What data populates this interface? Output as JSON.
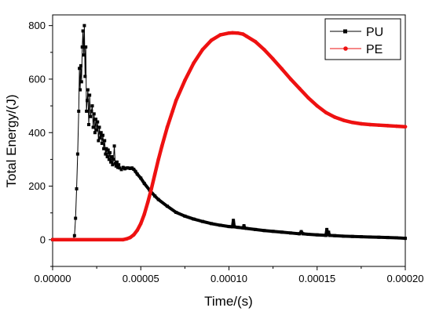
{
  "chart_data": {
    "type": "line",
    "xlabel": "Time/(s)",
    "ylabel": "Total Energy/(J)",
    "xlim": [
      0,
      0.0002
    ],
    "ylim": [
      -100,
      840
    ],
    "x_ticks": [
      "0.00000",
      "0.00005",
      "0.00010",
      "0.00015",
      "0.00020"
    ],
    "x_tick_values": [
      0,
      5e-05,
      0.0001,
      0.00015,
      0.0002
    ],
    "y_ticks": [
      "0",
      "200",
      "400",
      "600",
      "800"
    ],
    "y_tick_values": [
      0,
      200,
      400,
      600,
      800
    ],
    "legend_position": "top-right",
    "series": [
      {
        "name": "PU",
        "color": "#000000",
        "marker": "square",
        "x": [
          0,
          1.18e-05,
          1.24e-05,
          1.3e-05,
          1.36e-05,
          1.42e-05,
          1.48e-05,
          1.52e-05,
          1.56e-05,
          1.6e-05,
          1.64e-05,
          1.68e-05,
          1.72e-05,
          1.76e-05,
          1.8e-05,
          1.84e-05,
          1.88e-05,
          1.92e-05,
          1.96e-05,
          2e-05,
          2.05e-05,
          2.1e-05,
          2.15e-05,
          2.2e-05,
          2.25e-05,
          2.3e-05,
          2.35e-05,
          2.4e-05,
          2.45e-05,
          2.5e-05,
          2.55e-05,
          2.6e-05,
          2.65e-05,
          2.7e-05,
          2.75e-05,
          2.8e-05,
          2.85e-05,
          2.9e-05,
          2.95e-05,
          3e-05,
          3.05e-05,
          3.1e-05,
          3.15e-05,
          3.2e-05,
          3.25e-05,
          3.3e-05,
          3.35e-05,
          3.4e-05,
          3.45e-05,
          3.5e-05,
          3.55e-05,
          3.6e-05,
          3.65e-05,
          3.7e-05,
          3.75e-05,
          3.8e-05,
          3.9e-05,
          4e-05,
          4.1e-05,
          4.2e-05,
          4.3e-05,
          4.4e-05,
          4.5e-05,
          4.6e-05,
          4.7e-05,
          4.8e-05,
          5e-05,
          5.2e-05,
          5.5e-05,
          5.8e-05,
          6e-05,
          6.5e-05,
          7e-05,
          7.5e-05,
          8e-05,
          8.5e-05,
          9e-05,
          9.5e-05,
          0.0001,
          0.000102,
          0.0001025,
          0.000103,
          0.000105,
          0.000108,
          0.0001085,
          0.000109,
          0.00011,
          0.000115,
          0.00012,
          0.000125,
          0.00013,
          0.000135,
          0.00014,
          0.000141,
          0.000142,
          0.000145,
          0.00015,
          0.000155,
          0.0001555,
          0.000156,
          0.0001565,
          0.000157,
          0.00016,
          0.000165,
          0.00017,
          0.000175,
          0.00018,
          0.000185,
          0.00019,
          0.000195,
          0.0002
        ],
        "y": [
          0,
          0,
          15,
          80,
          190,
          320,
          480,
          640,
          560,
          650,
          590,
          720,
          780,
          690,
          800,
          610,
          720,
          480,
          520,
          560,
          430,
          540,
          460,
          480,
          500,
          420,
          470,
          400,
          450,
          410,
          440,
          370,
          420,
          380,
          400,
          360,
          390,
          340,
          370,
          320,
          340,
          310,
          335,
          300,
          325,
          290,
          310,
          280,
          300,
          350,
          285,
          275,
          290,
          270,
          280,
          268,
          262,
          270,
          265,
          268,
          268,
          266,
          268,
          263,
          255,
          245,
          230,
          210,
          185,
          163,
          150,
          125,
          102,
          88,
          77,
          68,
          60,
          54,
          49,
          48,
          72,
          48,
          46,
          44,
          52,
          43,
          42,
          38,
          34,
          31,
          28,
          25,
          22,
          30,
          22,
          20,
          18,
          16,
          38,
          20,
          28,
          16,
          15,
          13,
          12,
          11,
          10,
          9,
          8,
          7,
          5
        ]
      },
      {
        "name": "PE",
        "color": "#ee1111",
        "marker": "circle",
        "x": [
          0,
          4e-05,
          4.2e-05,
          4.4e-05,
          4.6e-05,
          4.8e-05,
          5e-05,
          5.2e-05,
          5.4e-05,
          5.6e-05,
          5.8e-05,
          6e-05,
          6.2e-05,
          6.5e-05,
          6.8e-05,
          7e-05,
          7.5e-05,
          8e-05,
          8.5e-05,
          9e-05,
          9.5e-05,
          0.0001,
          0.000102,
          0.000105,
          0.000108,
          0.00011,
          0.000115,
          0.00012,
          0.000125,
          0.00013,
          0.000135,
          0.00014,
          0.000145,
          0.00015,
          0.000155,
          0.00016,
          0.000165,
          0.00017,
          0.000175,
          0.00018,
          0.000185,
          0.00019,
          0.000195,
          0.0002
        ],
        "y": [
          0,
          0,
          3,
          8,
          18,
          35,
          60,
          95,
          140,
          190,
          245,
          300,
          350,
          420,
          480,
          520,
          595,
          660,
          710,
          745,
          765,
          772,
          773,
          772,
          768,
          760,
          740,
          710,
          675,
          638,
          600,
          565,
          530,
          500,
          475,
          458,
          446,
          438,
          433,
          430,
          428,
          426,
          424,
          422
        ]
      }
    ]
  }
}
